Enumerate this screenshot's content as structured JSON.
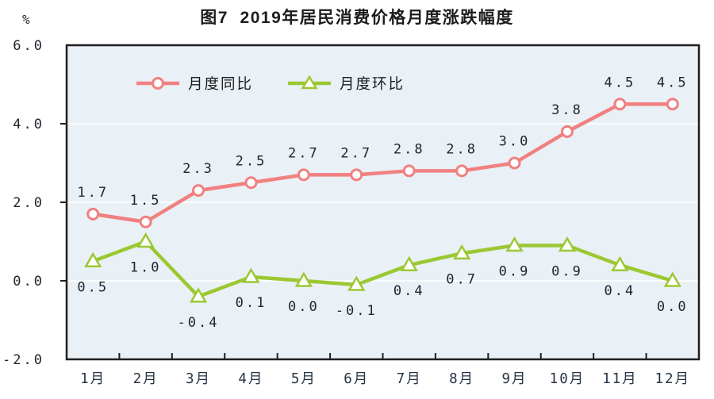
{
  "chart_data": {
    "type": "line",
    "title": "图7  2019年居民消费价格月度涨跌幅度",
    "unit_label": "%",
    "categories": [
      "1月",
      "2月",
      "3月",
      "4月",
      "5月",
      "6月",
      "7月",
      "8月",
      "9月",
      "10月",
      "11月",
      "12月"
    ],
    "series": [
      {
        "name": "月度同比",
        "marker": "circle",
        "color": "#f18080",
        "values": [
          1.7,
          1.5,
          2.3,
          2.5,
          2.7,
          2.7,
          2.8,
          2.8,
          3.0,
          3.8,
          4.5,
          4.5
        ]
      },
      {
        "name": "月度环比",
        "marker": "triangle",
        "color": "#9bc832",
        "values": [
          0.5,
          1.0,
          -0.4,
          0.1,
          0.0,
          -0.1,
          0.4,
          0.7,
          0.9,
          0.9,
          0.4,
          0.0
        ]
      }
    ],
    "ylim": [
      -2.0,
      6.0
    ],
    "ytick_step": 2.0,
    "ytick_labels": [
      "6.0",
      "4.0",
      "2.0",
      "0.0",
      "-2.0"
    ],
    "grid": true,
    "legend_position": "top-inside",
    "data_labels": true,
    "colors": {
      "plot_bg": "#e9f0f6",
      "grid": "#ffffff",
      "axis": "#1f1f1f",
      "label": "#20262e",
      "marker_fill": "#ffffff"
    }
  }
}
